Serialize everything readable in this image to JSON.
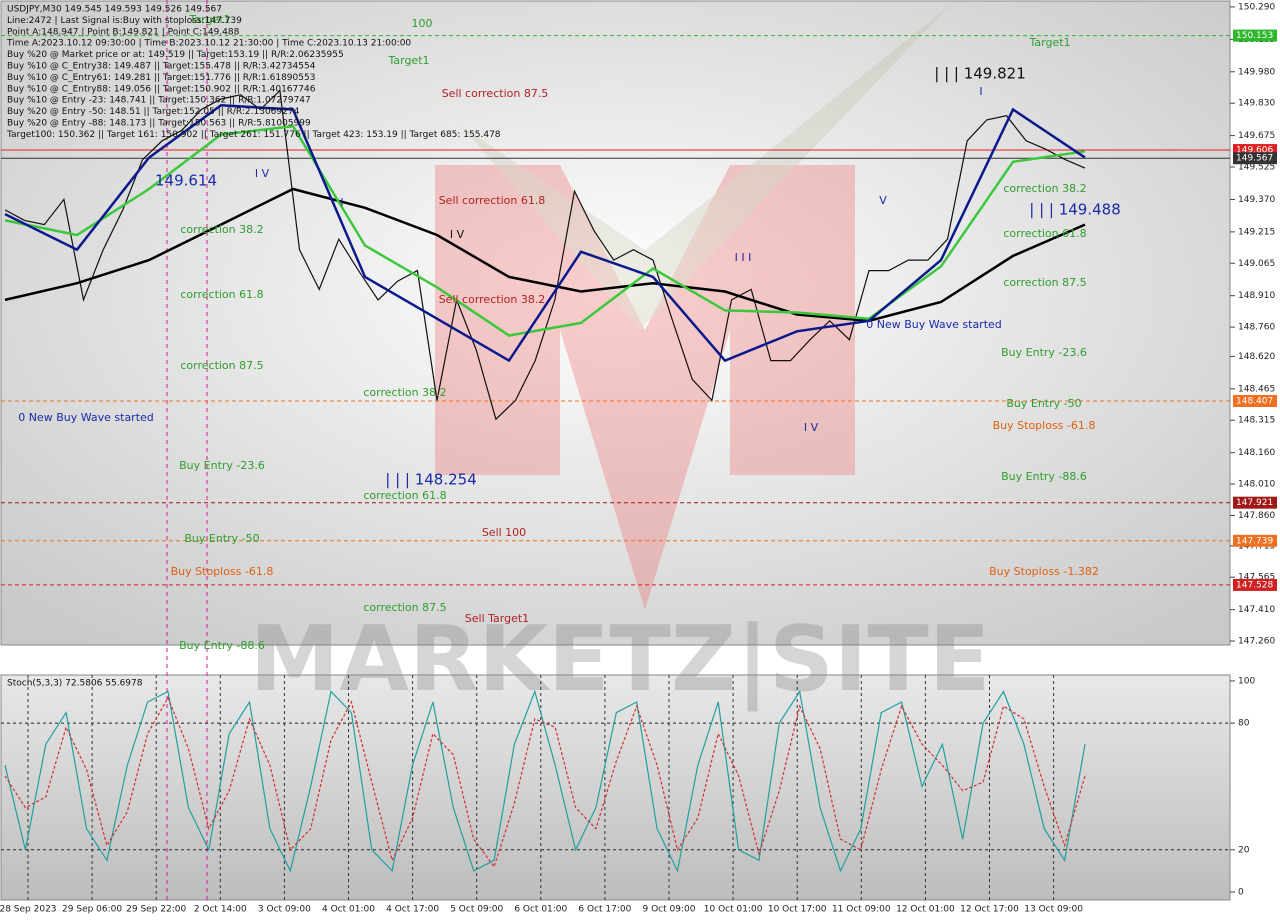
{
  "header": {
    "lines": [
      "USDJPY,M30  149.545 149.593 149.526 149.567",
      "Line:2472 | Last Signal is:Buy with stoploss:147.739",
      "Point A:148.947 | Point B:149.821 | Point C:149.488",
      "Time A:2023.10.12 09:30:00 | Time B:2023.10.12 21:30:00 | Time C:2023.10.13 21:00:00",
      "Buy %20 @ Market price or at: 149.519 || Target:153.19 || R/R:2.06235955",
      "Buy %10 @ C_Entry38: 149.487 || Target:155.478 || R/R:3.42734554",
      "Buy %10 @ C_Entry61: 149.281 || Target:151.776 || R/R:1.61890553",
      "Buy %10 @ C_Entry88: 149.056 || Target:150.902 || R/R:1.40167746",
      "Buy %10 @ Entry -23: 148.741 || Target:150.362 || R/R:1.07279747",
      "Buy %20 @ Entry -50: 148.51 || Target:152.05 || R/R:2.13069274",
      "Buy %20 @ Entry -88: 148.173 || Target:150.563 || R/R:5.81005999",
      "Target100: 150.362 || Target 161: 150.902 || Target 261: 151.776 || Target 423: 153.19 || Target 685: 155.478"
    ]
  },
  "chart_data": [
    {
      "type": "line",
      "ylim": [
        147.241,
        150.323
      ],
      "yticks": [
        {
          "value": 150.29,
          "label": "150.290"
        },
        150.135,
        {
          "value": 149.98,
          "label": "149.980"
        },
        {
          "value": 149.83,
          "label": "149.830"
        },
        149.675,
        149.525,
        {
          "value": 149.37,
          "label": "149.370"
        },
        149.215,
        149.065,
        {
          "value": 148.91,
          "label": "148.910"
        },
        {
          "value": 148.76,
          "label": "148.760"
        },
        {
          "value": 148.62,
          "label": "148.620"
        },
        148.465,
        148.315,
        {
          "value": 148.16,
          "label": "148.160"
        },
        {
          "value": 148.01,
          "label": "148.010"
        },
        {
          "value": 147.86,
          "label": "147.860"
        },
        147.715,
        147.565,
        {
          "value": 147.41,
          "label": "147.410"
        },
        {
          "value": 147.26,
          "label": "147.260"
        }
      ],
      "xticks": [
        "28 Sep 2023",
        "29 Sep 06:00",
        "29 Sep 22:00",
        "2 Oct 14:00",
        "3 Oct 09:00",
        "4 Oct 01:00",
        "4 Oct 17:00",
        "5 Oct 09:00",
        "6 Oct 01:00",
        "6 Oct 17:00",
        "9 Oct 09:00",
        "10 Oct 01:00",
        "10 Oct 17:00",
        "11 Oct 09:00",
        "12 Oct 01:00",
        "12 Oct 17:00",
        "13 Oct 09:00"
      ],
      "series": [
        {
          "color": "#111111",
          "values": [
            149.32,
            149.27,
            149.25,
            149.37,
            148.89,
            149.13,
            149.32,
            149.56,
            149.65,
            149.7,
            149.8,
            149.85,
            149.87,
            149.8,
            149.89,
            149.13,
            148.94,
            149.18,
            149.03,
            148.89,
            148.98,
            149.03,
            148.41,
            148.89,
            148.65,
            148.32,
            148.41,
            148.6,
            148.89,
            149.41,
            149.22,
            149.08,
            149.13,
            149.08,
            148.79,
            148.51,
            148.41,
            148.89,
            148.94,
            148.6,
            148.6,
            148.7,
            148.79,
            148.7,
            149.03,
            149.03,
            149.08,
            149.08,
            149.18,
            149.65,
            149.75,
            149.77,
            149.65,
            149.61,
            149.56,
            149.52
          ]
        },
        {
          "color": "#000000",
          "values": [
            148.89,
            148.97,
            149.08,
            149.25,
            149.42,
            149.33,
            149.2,
            149.0,
            148.93,
            148.97,
            148.93,
            148.82,
            148.79,
            148.88,
            149.1,
            149.25
          ]
        },
        {
          "color": "#3cc83c",
          "values": [
            149.27,
            149.2,
            149.42,
            149.68,
            149.72,
            149.15,
            148.95,
            148.72,
            148.78,
            149.04,
            148.84,
            148.83,
            148.8,
            149.05,
            149.55,
            149.6
          ]
        },
        {
          "color": "#0a1a8c",
          "values": [
            149.3,
            149.13,
            149.57,
            149.82,
            149.8,
            149.0,
            148.8,
            148.6,
            149.12,
            149.0,
            148.6,
            148.74,
            148.79,
            149.08,
            149.8,
            149.57
          ]
        }
      ],
      "levels": [
        {
          "value": 150.153,
          "color": "#2eb82e"
        },
        {
          "value": 149.606,
          "color": "#e02020"
        },
        {
          "value": 149.567,
          "color": "#333333"
        },
        {
          "value": 148.407,
          "color": "#f07020"
        },
        {
          "value": 147.921,
          "color": "#a01818"
        },
        {
          "value": 147.739,
          "color": "#f07020"
        },
        {
          "value": 147.528,
          "color": "#d02020"
        }
      ],
      "annotations": [
        {
          "text": "Target1",
          "color": "#2e9e2e"
        },
        {
          "text": "100",
          "color": "#2e9e2e"
        },
        {
          "text": "Target1",
          "color": "#2e9e2e"
        },
        {
          "text": "Sell correction 87.5",
          "color": "#b22222"
        },
        {
          "text": "Sell correction 61.8",
          "color": "#b22222"
        },
        {
          "text": "Sell correction 38.2",
          "color": "#b22222"
        },
        {
          "text": "I V",
          "color": "#111111"
        },
        {
          "text": "I V",
          "color": "#1a2aa8"
        },
        {
          "text": "149.614",
          "color": "#1a2aa8"
        },
        {
          "text": "correction 38.2",
          "color": "#2e9e2e"
        },
        {
          "text": "correction 61.8",
          "color": "#2e9e2e"
        },
        {
          "text": "correction 87.5",
          "color": "#2e9e2e"
        },
        {
          "text": "correction 38.2",
          "color": "#2e9e2e"
        },
        {
          "text": "| | | 148.254",
          "color": "#1a2aa8"
        },
        {
          "text": "correction 61.8",
          "color": "#2e9e2e"
        },
        {
          "text": "0 New Buy Wave started",
          "color": "#1a2aa8"
        },
        {
          "text": "Buy Entry -23.6",
          "color": "#2e9e2e"
        },
        {
          "text": "Buy Entry -50",
          "color": "#2e9e2e"
        },
        {
          "text": "Buy Stoploss -61.8",
          "color": "#e06010"
        },
        {
          "text": "Buy Entry -88.6",
          "color": "#2e9e2e"
        },
        {
          "text": "Sell 100",
          "color": "#b22222"
        },
        {
          "text": "correction 87.5",
          "color": "#2e9e2e"
        },
        {
          "text": "Sell Target1",
          "color": "#b22222"
        },
        {
          "text": "| | | 149.821",
          "color": "#111111"
        },
        {
          "text": "I",
          "color": "#1a2aa8"
        },
        {
          "text": "Target1",
          "color": "#2e9e2e"
        },
        {
          "text": "| | | 149.488",
          "color": "#1a2aa8"
        },
        {
          "text": "correction 38.2",
          "color": "#2e9e2e"
        },
        {
          "text": "correction 61.8",
          "color": "#2e9e2e"
        },
        {
          "text": "correction 87.5",
          "color": "#2e9e2e"
        },
        {
          "text": "Buy Entry -23.6",
          "color": "#2e9e2e"
        },
        {
          "text": "Buy Entry -50",
          "color": "#2e9e2e"
        },
        {
          "text": "Buy Stoploss -61.8",
          "color": "#e06010"
        },
        {
          "text": "Buy Entry -88.6",
          "color": "#2e9e2e"
        },
        {
          "text": "Buy Stoploss -1.382",
          "color": "#e06010"
        },
        {
          "text": "V",
          "color": "#1a2aa8"
        },
        {
          "text": "I I I",
          "color": "#1a2aa8"
        },
        {
          "text": "I V",
          "color": "#1a2aa8"
        },
        {
          "text": "0 New Buy Wave started",
          "color": "#1a2aa8"
        },
        {
          "text": "I",
          "color": "#1a2aa8"
        }
      ]
    },
    {
      "type": "line",
      "title": "Stoch(5,3,3) 72.5806 55.6978",
      "ylim": [
        -3.8,
        102.8
      ],
      "yticks": [
        0,
        20,
        80,
        100
      ],
      "series": [
        {
          "color": "#20a0a0",
          "values": [
            60,
            20,
            70,
            85,
            30,
            15,
            60,
            90,
            95,
            40,
            20,
            75,
            90,
            30,
            10,
            50,
            95,
            85,
            20,
            10,
            60,
            90,
            40,
            10,
            15,
            70,
            95,
            60,
            20,
            40,
            85,
            90,
            30,
            10,
            60,
            90,
            20,
            15,
            80,
            95,
            40,
            10,
            30,
            85,
            90,
            50,
            70,
            25,
            80,
            95,
            70,
            30,
            15,
            70
          ]
        },
        {
          "color": "#d03030",
          "dashed": true,
          "values": [
            55,
            40,
            45,
            78,
            58,
            22,
            38,
            75,
            92,
            68,
            30,
            48,
            82,
            60,
            20,
            30,
            72,
            90,
            52,
            15,
            35,
            75,
            65,
            25,
            12,
            42,
            82,
            78,
            40,
            30,
            62,
            88,
            60,
            20,
            35,
            75,
            55,
            18,
            48,
            88,
            68,
            25,
            20,
            58,
            88,
            70,
            60,
            48,
            52,
            88,
            82,
            50,
            22,
            55
          ]
        }
      ]
    }
  ]
}
